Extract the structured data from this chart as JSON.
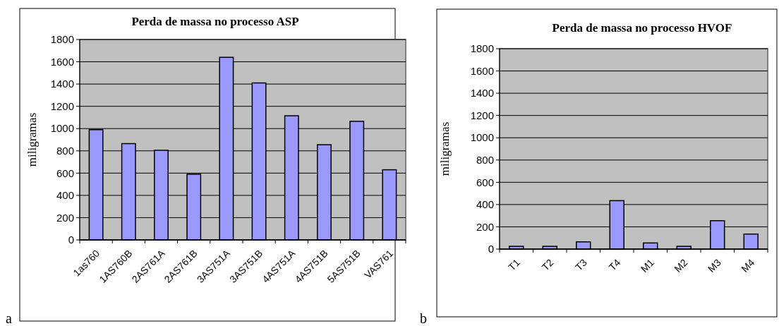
{
  "chart_data": [
    {
      "type": "bar",
      "title": "Perda de massa no processo ASP",
      "ylabel": "miligramas",
      "categories": [
        "1as760",
        "1AS760B",
        "2AS761A",
        "2AS761B",
        "3AS751A",
        "3AS751B",
        "4AS751A",
        "4AS751B",
        "5AS751B",
        "VAS761"
      ],
      "values": [
        990,
        865,
        805,
        590,
        1640,
        1410,
        1115,
        855,
        1065,
        630
      ],
      "color": "#9999ff",
      "ylim": [
        0,
        1800
      ],
      "yticks": [
        0,
        200,
        400,
        600,
        800,
        1000,
        1200,
        1400,
        1600,
        1800
      ],
      "grid": "y",
      "annotations": [
        "a"
      ]
    },
    {
      "type": "bar",
      "title": "Perda de massa no processo HVOF",
      "ylabel": "miligramas",
      "categories": [
        "T1",
        "T2",
        "T3",
        "T4",
        "M1",
        "M2",
        "M3",
        "M4"
      ],
      "values": [
        25,
        25,
        65,
        435,
        55,
        25,
        255,
        135
      ],
      "color": "#9999ff",
      "ylim": [
        0,
        1800
      ],
      "yticks": [
        0,
        200,
        400,
        600,
        800,
        1000,
        1200,
        1400,
        1600,
        1800
      ],
      "grid": "y",
      "annotations": [
        "b"
      ]
    }
  ]
}
